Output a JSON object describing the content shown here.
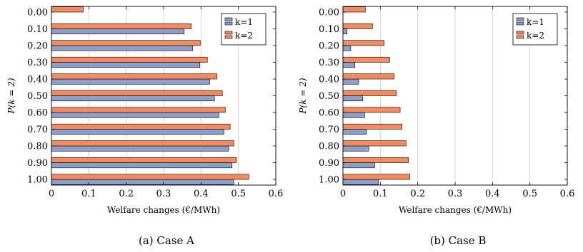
{
  "chart_data": [
    {
      "type": "bar",
      "orientation": "horizontal",
      "caption": "(a) Case A",
      "categories": [
        "0.00",
        "0.10",
        "0.20",
        "0.30",
        "0.40",
        "0.50",
        "0.60",
        "0.70",
        "0.80",
        "0.90",
        "1.00"
      ],
      "series": [
        {
          "name": "k=1",
          "color": "#8c9fca",
          "values": [
            null,
            0.355,
            0.378,
            0.397,
            0.423,
            0.436,
            0.448,
            0.461,
            0.474,
            0.483,
            0.488
          ]
        },
        {
          "name": "k=2",
          "color": "#f48a5e",
          "values": [
            0.085,
            0.374,
            0.398,
            0.417,
            0.443,
            0.457,
            0.465,
            0.478,
            0.488,
            0.495,
            0.528
          ]
        }
      ],
      "xlabel": "Welfare changes (€/MWh)",
      "ylabel": "P(k = 2)",
      "xlim": [
        0,
        0.6
      ],
      "xticks": [
        "0",
        "0.1",
        "0.2",
        "0.3",
        "0.4",
        "0.5",
        "0.6"
      ],
      "grid": "vertical",
      "legend": "top-right"
    },
    {
      "type": "bar",
      "orientation": "horizontal",
      "caption": "(b) Case B",
      "categories": [
        "0.00",
        "0.10",
        "0.20",
        "0.30",
        "0.40",
        "0.50",
        "0.60",
        "0.70",
        "0.80",
        "0.90",
        "1.00"
      ],
      "series": [
        {
          "name": "k=1",
          "color": "#8c9fca",
          "values": [
            null,
            0.011,
            0.021,
            0.032,
            0.042,
            0.053,
            0.058,
            0.063,
            0.069,
            0.085,
            0.095
          ]
        },
        {
          "name": "k=2",
          "color": "#f48a5e",
          "values": [
            0.06,
            0.079,
            0.11,
            0.125,
            0.137,
            0.143,
            0.153,
            0.158,
            0.169,
            0.175,
            0.179
          ]
        }
      ],
      "xlabel": "Welfare changes (€/MWh)",
      "ylabel": "P(k = 2)",
      "xlim": [
        0,
        0.6
      ],
      "xticks": [
        "0",
        "0.1",
        "0.2",
        "0.3",
        "0.4",
        "0.5",
        "0.6"
      ],
      "grid": "vertical",
      "legend": "top-right"
    }
  ]
}
